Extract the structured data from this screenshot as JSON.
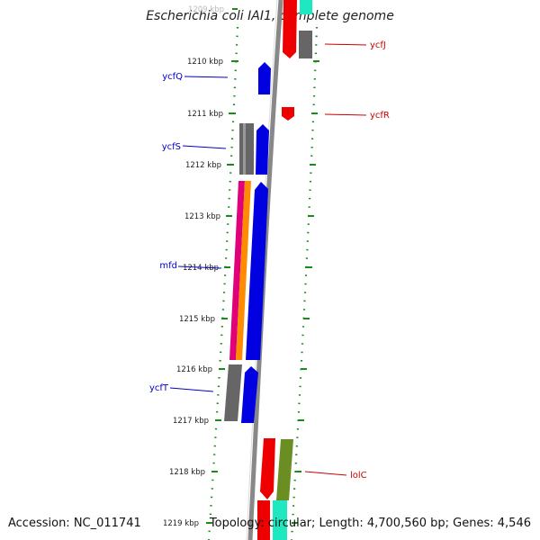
{
  "title": "Escherichia coli IAI1, complete genome",
  "accession_text": "Accession: NC_011741",
  "topology_text": "Topology: circular; Length: 4,700,560 bp; Genes: 4,546",
  "kbp_ticks": [
    "1209 kbp",
    "1210 kbp",
    "1211 kbp",
    "1212 kbp",
    "1213 kbp",
    "1214 kbp",
    "1215 kbp",
    "1216 kbp",
    "1217 kbp",
    "1218 kbp",
    "1219 kbp"
  ],
  "forward_gene_labels": [
    "ycfQ",
    "ycfS",
    "mfd",
    "ycfT"
  ],
  "reverse_gene_labels": [
    "ycfJ",
    "ycfR",
    "lolC"
  ],
  "colors": {
    "forward_label": "#0000cc",
    "reverse_label": "#cc0000",
    "blue_feature": "#0000e0",
    "red_feature": "#ee0000",
    "grey_feature": "#666666",
    "magenta_feature": "#e0007a",
    "orange_feature": "#ff8c00",
    "olive_feature": "#6b8e23",
    "cyan_feature": "#1ee8c0",
    "backbone": "#888888",
    "ruler_dots": "#1a8a1a"
  }
}
